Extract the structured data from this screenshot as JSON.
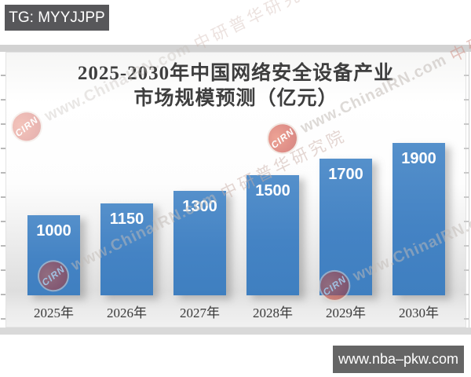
{
  "banners": {
    "telegram": "TG: MYYJJPP",
    "website": "www.nba–pkw.com"
  },
  "chart_data": {
    "type": "bar",
    "title": "2025-2030年中国网络安全设备产业市场规模预测（亿元）",
    "title_line1": "2025-2030年中国网络安全设备产业",
    "title_line2": "市场规模预测（亿元）",
    "categories": [
      "2025年",
      "2026年",
      "2027年",
      "2028年",
      "2029年",
      "2030年"
    ],
    "values": [
      1000,
      1150,
      1300,
      1500,
      1700,
      1900
    ],
    "unit": "亿元",
    "bar_color": "#4483c4",
    "value_label_color": "#ffffff",
    "grid": false,
    "legend": "none",
    "y_axis_labels_visible": false
  },
  "watermark": {
    "logo_text": "CIRN",
    "url_text": "www.ChinaIRN.com",
    "cn_text": "中研普华研究院",
    "logo_color": "#c63428"
  }
}
